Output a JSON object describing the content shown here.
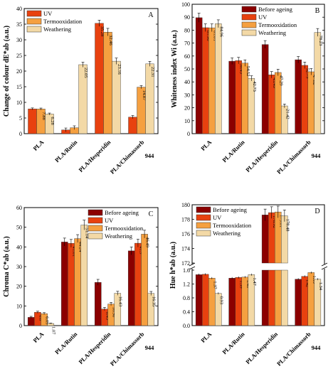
{
  "colors": {
    "before_ageing": "#8b0000",
    "uv": "#e8410f",
    "termooxidation": "#f5a040",
    "weathering": "#f3d9a6",
    "error_bar": "#000000",
    "axis": "#000000"
  },
  "chart_data": [
    {
      "panel": "A",
      "type": "bar",
      "ylabel": "Change of colour dE*ab (a.u.)",
      "ylim": [
        0,
        40
      ],
      "yticks": [
        0,
        5,
        10,
        15,
        20,
        25,
        30,
        35,
        40
      ],
      "categories": [
        "PLA",
        "PLA/Rutin",
        "PLA/Hesperidin",
        "PLA/Chimassorb 944"
      ],
      "legend": {
        "position": "top-left"
      },
      "series": [
        {
          "name": "UV",
          "color_key": "uv",
          "values": [
            7.92,
            1.2,
            35.28,
            5.3
          ],
          "errors": [
            0.3,
            0.6,
            1.0,
            0.5
          ]
        },
        {
          "name": "Termooxidation",
          "color_key": "termooxidation",
          "values": [
            7.88,
            1.9,
            32.46,
            14.87
          ],
          "errors": [
            0.3,
            0.6,
            1.2,
            0.5
          ]
        },
        {
          "name": "Weathering",
          "color_key": "weathering",
          "values": [
            6.28,
            22.05,
            23.16,
            22.31
          ],
          "errors": [
            0.3,
            0.8,
            1.0,
            0.8
          ]
        }
      ],
      "value_labels": [
        [
          "",
          "",
          "35.28",
          ""
        ],
        [
          "7.88",
          "",
          "32.46",
          "14.87"
        ],
        [
          "6.28",
          "22.05",
          "23.16",
          "22.31"
        ]
      ]
    },
    {
      "panel": "B",
      "type": "bar",
      "ylabel": "Whiteness index Wi (a.u.)",
      "ylim": [
        0,
        100
      ],
      "yticks": [
        0,
        10,
        20,
        30,
        40,
        50,
        60,
        70,
        80,
        90,
        100
      ],
      "categories": [
        "PLA",
        "PLA/Rutin",
        "PLA/Hesperidin",
        "PLA/Chimassorb 944"
      ],
      "legend": {
        "position": "top-right"
      },
      "series": [
        {
          "name": "Before ageing",
          "color_key": "before_ageing",
          "values": [
            89.63,
            56.0,
            68.9,
            57.12
          ],
          "errors": [
            3.5,
            2.5,
            3.0,
            2.5
          ]
        },
        {
          "name": "UV",
          "color_key": "uv",
          "values": [
            81.9,
            56.45,
            45.49,
            52.79
          ],
          "errors": [
            3.0,
            2.5,
            2.5,
            2.5
          ]
        },
        {
          "name": "Termooxidation",
          "color_key": "termooxidation",
          "values": [
            81.81,
            54.52,
            47.29,
            47.82
          ],
          "errors": [
            3.0,
            2.5,
            2.5,
            2.5
          ]
        },
        {
          "name": "Weathering",
          "color_key": "weathering",
          "values": [
            84.96,
            42.73,
            21.42,
            78.23
          ],
          "errors": [
            3.0,
            2.0,
            1.5,
            3.0
          ]
        }
      ],
      "value_labels": [
        [
          "",
          "",
          "",
          ""
        ],
        [
          "81.90",
          "56.45",
          "45.49",
          "52.79"
        ],
        [
          "81.81",
          "54.52",
          "47.29",
          "47.82"
        ],
        [
          "84.96",
          "42.73",
          "21.42",
          "78.23"
        ]
      ]
    },
    {
      "panel": "C",
      "type": "bar",
      "ylabel": "Chroma C*ab (a.u.)",
      "ylim": [
        0,
        60
      ],
      "yticks": [
        0,
        10,
        20,
        30,
        40,
        50,
        60
      ],
      "categories": [
        "PLA",
        "PLA/Rutin",
        "PLA/Hesperidin",
        "PLA/Chimassorb 944"
      ],
      "legend": {
        "position": "top-right"
      },
      "series": [
        {
          "name": "Before ageing",
          "color_key": "before_ageing",
          "values": [
            4.2,
            42.5,
            22.0,
            38.0
          ],
          "errors": [
            0.5,
            2.0,
            1.5,
            2.0
          ]
        },
        {
          "name": "UV",
          "color_key": "uv",
          "values": [
            6.8,
            41.81,
            8.43,
            41.9
          ],
          "errors": [
            0.5,
            2.0,
            0.8,
            2.0
          ]
        },
        {
          "name": "Termooxidation",
          "color_key": "termooxidation",
          "values": [
            6.09,
            44.24,
            10.98,
            46.49
          ],
          "errors": [
            0.5,
            2.0,
            0.8,
            2.0
          ]
        },
        {
          "name": "Weathering",
          "color_key": "weathering",
          "values": [
            1.07,
            51.14,
            16.43,
            16.35
          ],
          "errors": [
            0.2,
            2.5,
            1.0,
            1.0
          ]
        }
      ],
      "value_labels": [
        [
          "",
          "",
          "",
          ""
        ],
        [
          "6.8",
          "41.81",
          "8.43",
          "41.9"
        ],
        [
          "6.09",
          "44.24",
          "10.98",
          "46.49"
        ],
        [
          "1.07",
          "51.14",
          "16.43",
          "16.35"
        ]
      ]
    },
    {
      "panel": "D",
      "type": "bar",
      "ylabel": "Hue h*ab (a.u.)",
      "broken_axis": true,
      "lower_ylim": [
        0,
        1.6
      ],
      "lower_yticks": [
        "0.0",
        "0.4",
        "0.8",
        "1.2",
        "1.6"
      ],
      "upper_ylim": [
        172,
        180
      ],
      "upper_yticks": [
        "172",
        "174",
        "176",
        "178",
        "180"
      ],
      "categories": [
        "PLA",
        "PLA/Rutin",
        "PLA/Hesperidin",
        "PLA/Chimassorb 944"
      ],
      "legend": {
        "position": "top-left"
      },
      "series": [
        {
          "name": "Before ageing",
          "color_key": "before_ageing",
          "values": [
            1.47,
            1.37,
            178.6,
            1.34
          ],
          "errors": [
            0.03,
            0.03,
            0.8,
            0.03
          ]
        },
        {
          "name": "UV",
          "color_key": "uv",
          "values": [
            1.48,
            1.39,
            178.92,
            1.42
          ],
          "errors": [
            0.03,
            0.03,
            0.8,
            0.03
          ]
        },
        {
          "name": "Termooxidation",
          "color_key": "termooxidation",
          "values": [
            1.37,
            1.4,
            179.01,
            1.53
          ],
          "errors": [
            0.03,
            0.03,
            0.8,
            0.03
          ]
        },
        {
          "name": "Weathering",
          "color_key": "weathering",
          "values": [
            0.93,
            1.47,
            178.48,
            1.34
          ],
          "errors": [
            0.03,
            0.03,
            0.8,
            0.03
          ]
        }
      ],
      "value_labels": [
        [
          "",
          "",
          "",
          ""
        ],
        [
          "",
          "1.39",
          "178.92",
          "1.42"
        ],
        [
          "1.37",
          "1.40",
          "179.01",
          "1.53"
        ],
        [
          "0.93",
          "1.47",
          "178.48",
          "1.34"
        ]
      ]
    }
  ]
}
